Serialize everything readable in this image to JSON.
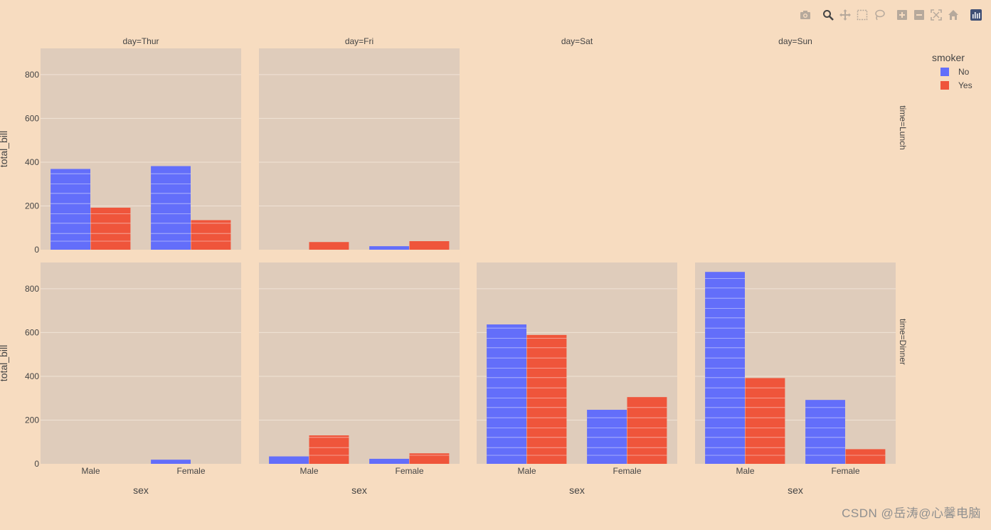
{
  "modebar": {
    "buttons": [
      {
        "name": "camera-icon",
        "label": "Download plot as a png"
      },
      {
        "name": "zoom-icon",
        "label": "Zoom"
      },
      {
        "name": "pan-icon",
        "label": "Pan"
      },
      {
        "name": "box-select-icon",
        "label": "Box Select"
      },
      {
        "name": "lasso-select-icon",
        "label": "Lasso Select"
      },
      {
        "name": "zoom-in-icon",
        "label": "Zoom in"
      },
      {
        "name": "zoom-out-icon",
        "label": "Zoom out"
      },
      {
        "name": "autoscale-icon",
        "label": "Autoscale"
      },
      {
        "name": "reset-axes-icon",
        "label": "Reset axes"
      },
      {
        "name": "plotly-logo-icon",
        "label": "Produced with Plotly"
      }
    ]
  },
  "watermark": "CSDN @岳涛@心馨电脑",
  "chart_data": {
    "type": "bar",
    "barmode": "group",
    "paper_bgcolor": "#f7dcc0",
    "plot_bgcolor": "#dfccbb",
    "colors": {
      "No": "#636efa",
      "Yes": "#ef553b"
    },
    "legend": {
      "title": "smoker",
      "entries": [
        "No",
        "Yes"
      ],
      "placement": "top-right"
    },
    "xlabel": "sex",
    "ylabel": "total_bill",
    "categories": [
      "Male",
      "Female"
    ],
    "ylim": [
      0,
      920
    ],
    "yticks": [
      0,
      200,
      400,
      600,
      800
    ],
    "col_titles": [
      "day=Thur",
      "day=Fri",
      "day=Sat",
      "day=Sun"
    ],
    "row_titles": [
      "time=Lunch",
      "time=Dinner"
    ],
    "facets": [
      {
        "row": 0,
        "col": 0,
        "present": true,
        "series": [
          {
            "name": "No",
            "values": [
              369,
              382
            ]
          },
          {
            "name": "Yes",
            "values": [
              192,
              135
            ]
          }
        ]
      },
      {
        "row": 0,
        "col": 1,
        "present": true,
        "series": [
          {
            "name": "No",
            "values": [
              0,
              16
            ]
          },
          {
            "name": "Yes",
            "values": [
              35,
              39
            ]
          }
        ]
      },
      {
        "row": 0,
        "col": 2,
        "present": false,
        "series": []
      },
      {
        "row": 0,
        "col": 3,
        "present": false,
        "series": []
      },
      {
        "row": 1,
        "col": 0,
        "present": true,
        "series": [
          {
            "name": "No",
            "values": [
              0,
              19
            ]
          },
          {
            "name": "Yes",
            "values": [
              0,
              0
            ]
          }
        ]
      },
      {
        "row": 1,
        "col": 1,
        "present": true,
        "series": [
          {
            "name": "No",
            "values": [
              34,
              23
            ]
          },
          {
            "name": "Yes",
            "values": [
              130,
              48
            ]
          }
        ]
      },
      {
        "row": 1,
        "col": 2,
        "present": true,
        "series": [
          {
            "name": "No",
            "values": [
              637,
              247
            ]
          },
          {
            "name": "Yes",
            "values": [
              589,
              305
            ]
          }
        ]
      },
      {
        "row": 1,
        "col": 3,
        "present": true,
        "series": [
          {
            "name": "No",
            "values": [
              877,
              292
            ]
          },
          {
            "name": "Yes",
            "values": [
              392,
              67
            ]
          }
        ]
      }
    ]
  }
}
